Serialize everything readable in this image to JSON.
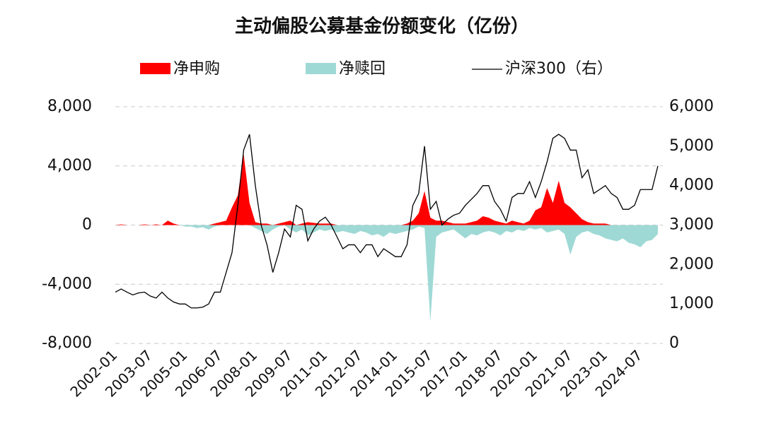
{
  "chart_data": {
    "type": "area-line",
    "title": "主动偏股公募基金份额变化（亿份）",
    "categories": [
      "2002-01",
      null,
      null,
      null,
      null,
      null,
      "2003-07",
      null,
      null,
      null,
      null,
      null,
      "2005-01",
      null,
      null,
      null,
      null,
      null,
      "2006-07",
      null,
      null,
      null,
      null,
      null,
      "2008-01",
      null,
      null,
      null,
      null,
      null,
      "2009-07",
      null,
      null,
      null,
      null,
      null,
      "2011-01",
      null,
      null,
      null,
      null,
      null,
      "2012-07",
      null,
      null,
      null,
      null,
      null,
      "2014-01",
      null,
      null,
      null,
      null,
      null,
      "2015-07",
      null,
      null,
      null,
      null,
      null,
      "2017-01",
      null,
      null,
      null,
      null,
      null,
      "2018-07",
      null,
      null,
      null,
      null,
      null,
      "2020-01",
      null,
      null,
      null,
      null,
      null,
      "2021-07",
      null,
      null,
      null,
      null,
      null,
      "2023-01",
      null,
      null,
      null,
      null,
      null,
      "2024-07",
      null,
      null,
      null
    ],
    "series": [
      {
        "name": "净申购",
        "color": "#ff0000",
        "kind": "area",
        "values": [
          0,
          50,
          0,
          0,
          0,
          50,
          0,
          50,
          0,
          300,
          100,
          0,
          0,
          0,
          0,
          0,
          0,
          100,
          200,
          300,
          1200,
          2000,
          4800,
          1500,
          200,
          100,
          100,
          0,
          100,
          200,
          300,
          0,
          100,
          200,
          150,
          100,
          100,
          100,
          0,
          0,
          0,
          0,
          0,
          0,
          0,
          0,
          0,
          0,
          0,
          0,
          100,
          300,
          800,
          2300,
          500,
          300,
          300,
          200,
          100,
          100,
          100,
          200,
          300,
          600,
          500,
          300,
          200,
          100,
          300,
          200,
          100,
          300,
          1000,
          1200,
          2500,
          1500,
          3000,
          1500,
          1200,
          800,
          400,
          200,
          100,
          100,
          100,
          0,
          0,
          0,
          0,
          0,
          0,
          0,
          0,
          0
        ]
      },
      {
        "name": "净赎回",
        "color": "#9fd9d5",
        "kind": "area",
        "values": [
          0,
          0,
          0,
          0,
          0,
          0,
          0,
          0,
          0,
          0,
          0,
          0,
          -100,
          -100,
          -200,
          -150,
          -300,
          -100,
          0,
          0,
          0,
          0,
          0,
          0,
          -200,
          -400,
          -600,
          -300,
          -100,
          0,
          -300,
          -500,
          -300,
          -700,
          -500,
          -300,
          -400,
          -300,
          -500,
          -400,
          -500,
          -600,
          -400,
          -500,
          -700,
          -600,
          -800,
          -500,
          -600,
          -500,
          -400,
          -300,
          -100,
          -200,
          -6500,
          -800,
          -500,
          -400,
          -300,
          -600,
          -900,
          -600,
          -700,
          -500,
          -400,
          -500,
          -700,
          -400,
          -500,
          -300,
          -400,
          -200,
          -300,
          -200,
          -500,
          -400,
          -300,
          -600,
          -2000,
          -800,
          -500,
          -400,
          -600,
          -700,
          -900,
          -1000,
          -1100,
          -900,
          -1200,
          -1300,
          -1500,
          -1100,
          -1000,
          -600
        ]
      },
      {
        "name": "沪深300（右）",
        "color": "#000000",
        "kind": "line",
        "axis": "y2",
        "values": [
          1300,
          1380,
          1300,
          1230,
          1280,
          1300,
          1200,
          1150,
          1300,
          1150,
          1050,
          1000,
          1000,
          900,
          900,
          920,
          1000,
          1300,
          1300,
          1800,
          2300,
          3500,
          4900,
          5300,
          4000,
          3000,
          2500,
          1800,
          2300,
          2900,
          2700,
          3500,
          3400,
          2600,
          2900,
          3100,
          3200,
          3000,
          2700,
          2400,
          2500,
          2500,
          2300,
          2500,
          2500,
          2200,
          2400,
          2300,
          2200,
          2200,
          2500,
          3500,
          3800,
          5000,
          3400,
          3600,
          3000,
          3150,
          3250,
          3300,
          3500,
          3650,
          3800,
          4000,
          4000,
          3600,
          3400,
          3100,
          3700,
          3800,
          3800,
          4100,
          3700,
          4100,
          4600,
          5200,
          5300,
          5200,
          4900,
          4900,
          4200,
          4400,
          3800,
          3900,
          4000,
          3800,
          3700,
          3400,
          3400,
          3500,
          3900,
          3900,
          3900,
          4500
        ]
      }
    ],
    "ylim": [
      -8000,
      8000
    ],
    "yticks": [
      {
        "value": -8000,
        "label": "-8,000"
      },
      {
        "value": -4000,
        "label": "-4,000"
      },
      0,
      {
        "value": 4000,
        "label": "4,000"
      },
      {
        "value": 8000,
        "label": "8,000"
      }
    ],
    "y2lim": [
      0,
      6000
    ],
    "y2ticks": [
      0,
      {
        "value": 1000,
        "label": "1,000"
      },
      {
        "value": 2000,
        "label": "2,000"
      },
      {
        "value": 3000,
        "label": "3,000"
      },
      {
        "value": 4000,
        "label": "4,000"
      },
      {
        "value": 5000,
        "label": "5,000"
      },
      {
        "value": 6000,
        "label": "6,000"
      }
    ],
    "grid": true
  }
}
